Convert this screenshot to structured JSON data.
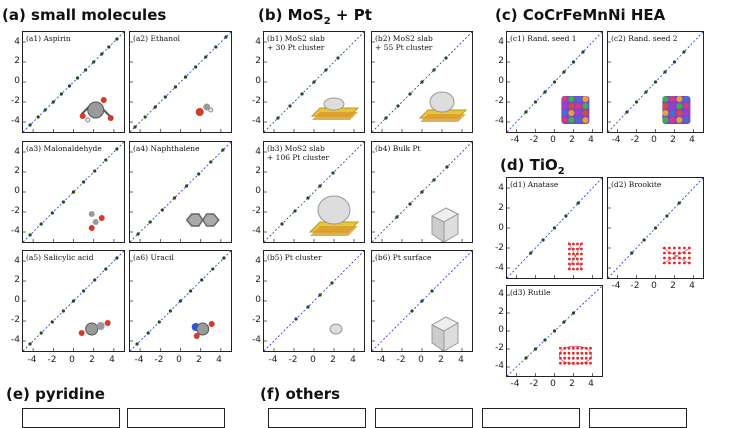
{
  "sections": {
    "a": "(a) small molecules",
    "b_pre": "(b) MoS",
    "b_sub": "2",
    "b_post": " + Pt",
    "c": "(c) CoCrFeMnNi HEA",
    "d_pre": "(d) TiO",
    "d_sub": "2",
    "e": "(e) pyridine",
    "f": "(f) others"
  },
  "colors": {
    "points": "#1e4d1e",
    "diagonal": "#1a2fd6",
    "frame": "#222222"
  },
  "ticks": {
    "a_y": [
      "4",
      "2",
      "0",
      "-2",
      "-4"
    ],
    "a_x": [
      "-4",
      "-2",
      "0",
      "2",
      "4"
    ],
    "b_y": [
      "4",
      "2",
      "0",
      "-2",
      "-4"
    ],
    "b_x": [
      "-4",
      "-2",
      "0",
      "2",
      "4"
    ],
    "c_y": [
      "4",
      "2",
      "0",
      "-2",
      "-4"
    ],
    "c_x": [
      "-4",
      "-2",
      "0",
      "2",
      "4"
    ],
    "d_y": [
      "4",
      "2",
      "0",
      "-2",
      "-4"
    ],
    "d_x": [
      "-4",
      "-2",
      "0",
      "2",
      "4"
    ]
  },
  "chart_data": [
    {
      "id": "a1",
      "type": "scatter",
      "label": "(a1) Aspirin",
      "xlim": [
        -5,
        5
      ],
      "ylim": [
        -5,
        5
      ],
      "x": [
        -4.3,
        -3.5,
        -2.8,
        -2,
        -1.2,
        -0.4,
        0.4,
        1.2,
        2,
        2.8,
        3.5,
        4.3
      ],
      "y": [
        -4.3,
        -3.5,
        -2.8,
        -2,
        -1.2,
        -0.4,
        0.4,
        1.2,
        2,
        2.8,
        3.5,
        4.3
      ],
      "grid": false,
      "icon": "aspirin-molecule-icon"
    },
    {
      "id": "a2",
      "type": "scatter",
      "label": "(a2) Ethanol",
      "xlim": [
        -5,
        5
      ],
      "ylim": [
        -5,
        5
      ],
      "x": [
        -4.5,
        -3.5,
        -2.5,
        -1.5,
        -0.5,
        0.5,
        1.5,
        2.5,
        3.5,
        4.5
      ],
      "y": [
        -4.5,
        -3.5,
        -2.5,
        -1.5,
        -0.5,
        0.5,
        1.5,
        2.5,
        3.5,
        4.5
      ],
      "grid": false,
      "icon": "ethanol-molecule-icon"
    },
    {
      "id": "a3",
      "type": "scatter",
      "label": "(a3) Malonaldehyde",
      "xlim": [
        -5,
        5
      ],
      "ylim": [
        -5,
        5
      ],
      "x": [
        -4.3,
        -3.2,
        -2.1,
        -1,
        0,
        1,
        2.1,
        3.2,
        4.3
      ],
      "y": [
        -4.3,
        -3.2,
        -2.1,
        -1,
        0,
        1,
        2.1,
        3.2,
        4.3
      ],
      "grid": false,
      "icon": "malonaldehyde-molecule-icon"
    },
    {
      "id": "a4",
      "type": "scatter",
      "label": "(a4) Naphthalene",
      "xlim": [
        -5,
        5
      ],
      "ylim": [
        -5,
        5
      ],
      "x": [
        -4.2,
        -3,
        -1.8,
        -0.6,
        0.6,
        1.8,
        3,
        4.2
      ],
      "y": [
        -4.2,
        -3,
        -1.8,
        -0.6,
        0.6,
        1.8,
        3,
        4.2
      ],
      "grid": false,
      "icon": "naphthalene-molecule-icon"
    },
    {
      "id": "a5",
      "type": "scatter",
      "label": "(a5) Salicylic acid",
      "xlim": [
        -5,
        5
      ],
      "ylim": [
        -5,
        5
      ],
      "x": [
        -4.3,
        -3.2,
        -2.1,
        -1,
        0,
        1,
        2.1,
        3.2,
        4.3
      ],
      "y": [
        -4.3,
        -3.2,
        -2.1,
        -1,
        0,
        1,
        2.1,
        3.2,
        4.3
      ],
      "grid": false,
      "icon": "salicylic-acid-molecule-icon"
    },
    {
      "id": "a6",
      "type": "scatter",
      "label": "(a6) Uracil",
      "xlim": [
        -5,
        5
      ],
      "ylim": [
        -5,
        5
      ],
      "x": [
        -4.3,
        -3.2,
        -2.1,
        -1,
        0,
        1,
        2.1,
        3.2,
        4.3
      ],
      "y": [
        -4.3,
        -3.2,
        -2.1,
        -1,
        0,
        1,
        2.1,
        3.2,
        4.3
      ],
      "grid": false,
      "icon": "uracil-molecule-icon"
    },
    {
      "id": "b1",
      "type": "scatter",
      "label": "(b1) MoS2 slab\n+ 30 Pt cluster",
      "xlim": [
        -5,
        5
      ],
      "ylim": [
        -5,
        5
      ],
      "x": [
        -3.6,
        -2.4,
        -1.2,
        0,
        1.2,
        2.4
      ],
      "y": [
        -3.6,
        -2.4,
        -1.2,
        0,
        1.2,
        2.4
      ],
      "grid": false,
      "icon": "mos2-pt30-structure-icon"
    },
    {
      "id": "b2",
      "type": "scatter",
      "label": "(b2) MoS2 slab\n+ 55 Pt cluster",
      "xlim": [
        -5,
        5
      ],
      "ylim": [
        -5,
        5
      ],
      "x": [
        -3.6,
        -2.4,
        -1.2,
        0,
        1.2,
        2.4
      ],
      "y": [
        -3.6,
        -2.4,
        -1.2,
        0,
        1.2,
        2.4
      ],
      "grid": false,
      "icon": "mos2-pt55-structure-icon"
    },
    {
      "id": "b3",
      "type": "scatter",
      "label": "(b3) MoS2 slab\n+ 106 Pt cluster",
      "xlim": [
        -5,
        5
      ],
      "ylim": [
        -5,
        5
      ],
      "x": [
        -3.2,
        -1.9,
        -0.6,
        0.6,
        1.9
      ],
      "y": [
        -3.2,
        -1.9,
        -0.6,
        0.6,
        1.9
      ],
      "grid": false,
      "icon": "mos2-pt106-structure-icon"
    },
    {
      "id": "b4",
      "type": "scatter",
      "label": "(b4) Bulk Pt",
      "xlim": [
        -5,
        5
      ],
      "ylim": [
        -5,
        5
      ],
      "x": [
        -2.5,
        -1.2,
        0,
        1.2,
        2.5
      ],
      "y": [
        -2.5,
        -1.2,
        0,
        1.2,
        2.5
      ],
      "grid": false,
      "icon": "bulk-pt-structure-icon"
    },
    {
      "id": "b5",
      "type": "scatter",
      "label": "(b5) Pt cluster",
      "xlim": [
        -5,
        5
      ],
      "ylim": [
        -5,
        5
      ],
      "x": [
        -1.8,
        -0.6,
        0.6,
        1.8
      ],
      "y": [
        -1.8,
        -0.6,
        0.6,
        1.8
      ],
      "grid": false,
      "icon": "pt-cluster-structure-icon"
    },
    {
      "id": "b6",
      "type": "scatter",
      "label": "(b6) Pt surface",
      "xlim": [
        -5,
        5
      ],
      "ylim": [
        -5,
        5
      ],
      "x": [
        -1,
        0,
        1
      ],
      "y": [
        -1,
        0,
        1
      ],
      "grid": false,
      "icon": "pt-surface-structure-icon"
    },
    {
      "id": "c1",
      "type": "scatter",
      "label": "(c1) Rand. seed 1",
      "xlim": [
        -5,
        5
      ],
      "ylim": [
        -5,
        5
      ],
      "x": [
        -3,
        -2,
        -1,
        0,
        1,
        2,
        3
      ],
      "y": [
        -3,
        -2,
        -1,
        0,
        1,
        2,
        3
      ],
      "grid": false,
      "icon": "hea-seed1-structure-icon"
    },
    {
      "id": "c2",
      "type": "scatter",
      "label": "(c2) Rand. seed 2",
      "xlim": [
        -5,
        5
      ],
      "ylim": [
        -5,
        5
      ],
      "x": [
        -3,
        -2,
        -1,
        0,
        1,
        2,
        3
      ],
      "y": [
        -3,
        -2,
        -1,
        0,
        1,
        2,
        3
      ],
      "grid": false,
      "icon": "hea-seed2-structure-icon"
    },
    {
      "id": "d1",
      "type": "scatter",
      "label": "(d1) Anatase",
      "xlim": [
        -5,
        5
      ],
      "ylim": [
        -5,
        5
      ],
      "x": [
        -2.5,
        -1.2,
        0,
        1.2,
        2.5
      ],
      "y": [
        -2.5,
        -1.2,
        0,
        1.2,
        2.5
      ],
      "grid": false,
      "icon": "anatase-structure-icon"
    },
    {
      "id": "d2",
      "type": "scatter",
      "label": "(d2) Brookite",
      "xlim": [
        -5,
        5
      ],
      "ylim": [
        -5,
        5
      ],
      "x": [
        -2.5,
        -1.2,
        0,
        1.2,
        2.5
      ],
      "y": [
        -2.5,
        -1.2,
        0,
        1.2,
        2.5
      ],
      "grid": false,
      "icon": "brookite-structure-icon"
    },
    {
      "id": "d3",
      "type": "scatter",
      "label": "(d3) Rutile",
      "xlim": [
        -5,
        5
      ],
      "ylim": [
        -5,
        5
      ],
      "x": [
        -3,
        -2,
        -1,
        0,
        1,
        2
      ],
      "y": [
        -3,
        -2,
        -1,
        0,
        1,
        2
      ],
      "grid": false,
      "icon": "rutile-structure-icon"
    }
  ]
}
